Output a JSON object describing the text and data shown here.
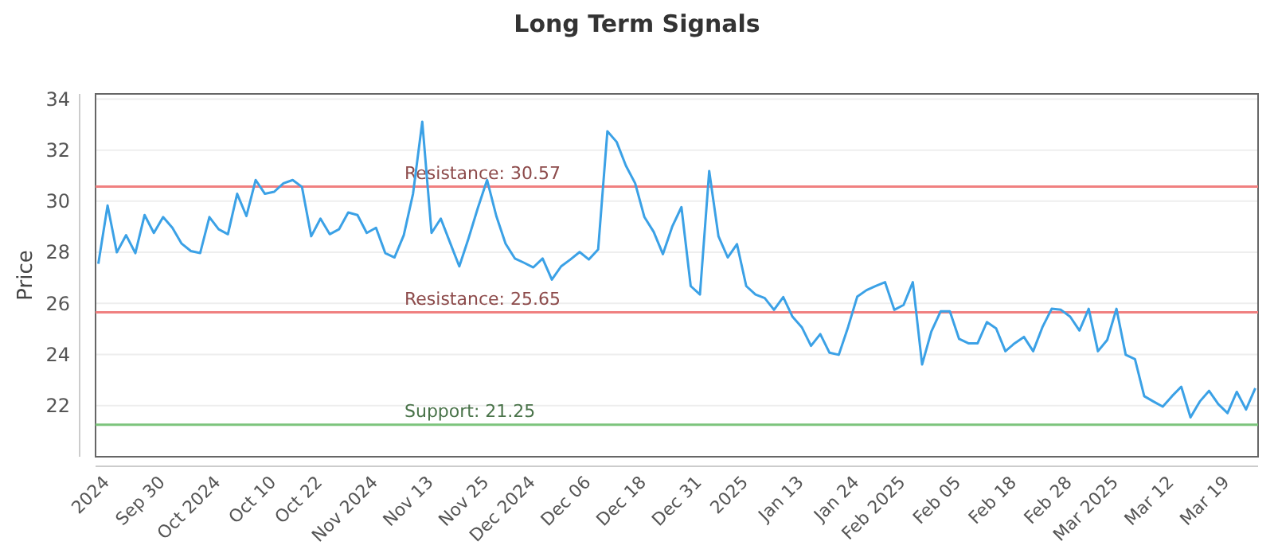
{
  "chart_data": {
    "type": "line",
    "title": "Long Term Signals",
    "ylabel": "Price",
    "categories": [
      null,
      "2024",
      null,
      null,
      null,
      null,
      null,
      "Sep 30",
      null,
      null,
      null,
      null,
      null,
      "Oct 2024",
      null,
      null,
      null,
      null,
      null,
      "Oct 10",
      null,
      null,
      null,
      null,
      "Oct 22",
      null,
      null,
      null,
      null,
      null,
      "Nov 2024",
      null,
      null,
      null,
      null,
      null,
      "Nov 13",
      null,
      null,
      null,
      null,
      null,
      "Nov 25",
      null,
      null,
      null,
      null,
      "Dec 2024",
      null,
      null,
      null,
      null,
      null,
      "Dec 06",
      null,
      null,
      null,
      null,
      null,
      "Dec 18",
      null,
      null,
      null,
      null,
      null,
      "Dec 31",
      null,
      null,
      null,
      null,
      "2025",
      null,
      null,
      null,
      null,
      null,
      "Jan 13",
      null,
      null,
      null,
      null,
      null,
      "Jan 24",
      null,
      null,
      null,
      null,
      "Feb 2025",
      null,
      null,
      null,
      null,
      null,
      "Feb 05",
      null,
      null,
      null,
      null,
      null,
      "Feb 18",
      null,
      null,
      null,
      null,
      null,
      "Feb 28",
      null,
      null,
      null,
      null,
      "Mar 2025",
      null,
      null,
      null,
      null,
      null,
      "Mar 12",
      null,
      null,
      null,
      null,
      null,
      "Mar 19",
      null,
      null,
      null
    ],
    "ylim": [
      20,
      34.2
    ],
    "yticks": [
      22,
      24,
      26,
      28,
      30,
      32,
      34
    ],
    "grid": "y",
    "marker": "none",
    "line_style": "solid",
    "series": [
      {
        "color": "#3ba1e6",
        "values": [
          27.55,
          29.83,
          28,
          28.67,
          27.97,
          29.46,
          28.76,
          29.38,
          28.96,
          28.34,
          28.05,
          27.97,
          29.38,
          28.9,
          28.71,
          30.29,
          29.42,
          30.83,
          30.29,
          30.37,
          30.7,
          30.83,
          30.56,
          28.63,
          29.32,
          28.71,
          28.9,
          29.56,
          29.46,
          28.76,
          28.96,
          27.97,
          27.8,
          28.67,
          30.29,
          33.11,
          28.76,
          29.32,
          28.38,
          27.45,
          28.55,
          29.73,
          30.83,
          29.42,
          28.34,
          27.76,
          27.59,
          27.41,
          27.76,
          26.93,
          27.45,
          27.72,
          28.01,
          27.72,
          28.11,
          32.74,
          32.32,
          31.39,
          30.7,
          29.38,
          28.8,
          27.93,
          29,
          29.77,
          26.68,
          26.35,
          31.18,
          28.63,
          27.8,
          28.32,
          26.68,
          26.35,
          26.21,
          25.75,
          26.25,
          25.48,
          25.07,
          24.34,
          24.8,
          24.07,
          23.99,
          25.07,
          26.27,
          26.52,
          26.68,
          26.83,
          25.75,
          25.94,
          26.83,
          23.61,
          24.9,
          25.69,
          25.69,
          24.61,
          24.44,
          24.44,
          25.27,
          25.02,
          24.13,
          24.44,
          24.69,
          24.13,
          25.07,
          25.79,
          25.75,
          25.48,
          24.94,
          25.79,
          24.13,
          24.57,
          25.79,
          23.99,
          23.82,
          22.37,
          22.16,
          21.96,
          22.37,
          22.74,
          21.54,
          22.16,
          22.58,
          22.06,
          21.71,
          22.54,
          21.85,
          22.68
        ]
      }
    ],
    "ref_lines": [
      {
        "axis": "y",
        "value": 30.57,
        "label": "Resistance: 30.57",
        "color": "#f08080"
      },
      {
        "axis": "y",
        "value": 25.65,
        "label": "Resistance: 25.65",
        "color": "#f08080"
      },
      {
        "axis": "y",
        "value": 21.25,
        "label": "Support: 21.25",
        "color": "#7cc47c"
      }
    ]
  }
}
